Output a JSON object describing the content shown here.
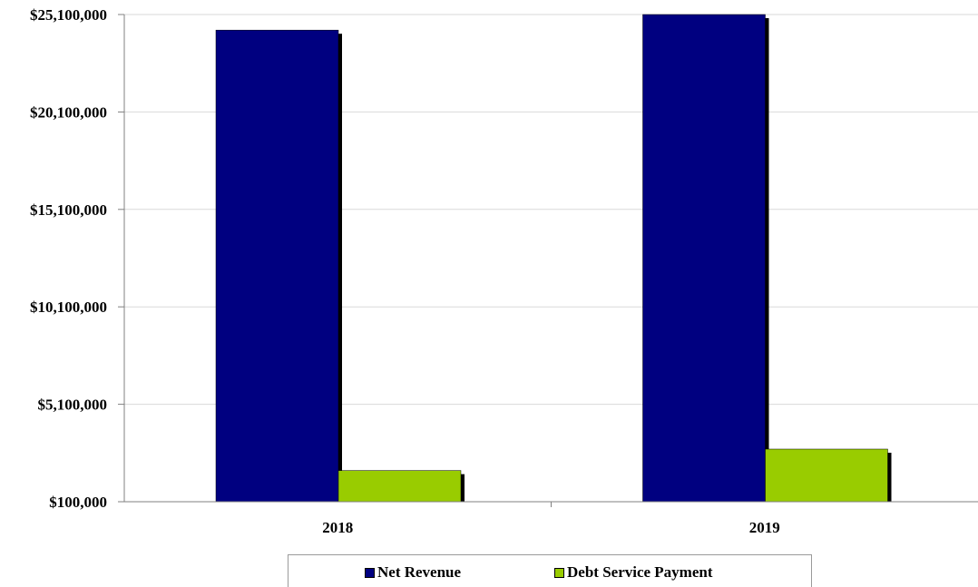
{
  "chart_data": {
    "type": "bar",
    "title": "",
    "xlabel": "",
    "ylabel": "",
    "categories": [
      "2018",
      "2019"
    ],
    "series": [
      {
        "name": "Net Revenue",
        "color": "#000080",
        "values": [
          24300000,
          25100000
        ]
      },
      {
        "name": "Debt Service Payment",
        "color": "#99cc00",
        "values": [
          1700000,
          2800000
        ]
      }
    ],
    "ylim": [
      100000,
      25100000
    ],
    "yticks": [
      100000,
      5100000,
      10100000,
      15100000,
      20100000,
      25100000
    ],
    "ytick_labels": [
      "$100,000",
      "$5,100,000",
      "$10,100,000",
      "$15,100,000",
      "$20,100,000",
      "$25,100,000"
    ],
    "grid": true,
    "legend_position": "bottom"
  }
}
